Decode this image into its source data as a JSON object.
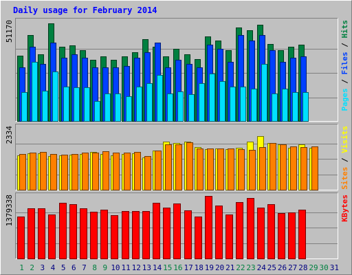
{
  "chart_data": {
    "title": "Daily usage for February 2014",
    "x": [
      "1",
      "2",
      "3",
      "4",
      "5",
      "6",
      "7",
      "8",
      "9",
      "10",
      "11",
      "12",
      "13",
      "14",
      "15",
      "16",
      "17",
      "18",
      "19",
      "20",
      "21",
      "22",
      "23",
      "24",
      "25",
      "26",
      "27",
      "28",
      "29",
      "30",
      "31"
    ],
    "x_colors": [
      "#008040",
      "#008040",
      "#000080",
      "#000080",
      "#000080",
      "#000080",
      "#000080",
      "#008040",
      "#008040",
      "#000080",
      "#000080",
      "#000080",
      "#000080",
      "#000080",
      "#008040",
      "#008040",
      "#000080",
      "#000080",
      "#000080",
      "#000080",
      "#000080",
      "#008040",
      "#008040",
      "#000080",
      "#000080",
      "#000080",
      "#000080",
      "#000080",
      "#008040",
      "#008040",
      "#000080"
    ],
    "panels": [
      {
        "type": "bar",
        "max_label": "51170",
        "ylim": [
          0,
          51170
        ],
        "series": [
          {
            "name": "Hits",
            "color": "#008040",
            "values": [
              34200,
              45000,
              35000,
              51170,
              39000,
              39500,
              37000,
              32000,
              34000,
              32000,
              34000,
              36000,
              43000,
              39000,
              34000,
              38000,
              35000,
              32500,
              44500,
              42000,
              37000,
              49000,
              47500,
              50500,
              40500,
              37000,
              39000,
              40000
            ]
          },
          {
            "name": "Files",
            "color": "#0040ff",
            "values": [
              28000,
              39000,
              30000,
              41000,
              33000,
              35000,
              33000,
              28000,
              28000,
              28000,
              29000,
              33000,
              36000,
              41000,
              28000,
              32000,
              30000,
              28000,
              40000,
              38000,
              31000,
              45000,
              42000,
              45000,
              37000,
              31000,
              33000,
              34000
            ]
          },
          {
            "name": "Pages",
            "color": "#00e0ff",
            "values": [
              15000,
              31000,
              16000,
              26000,
              18000,
              17500,
              17500,
              10500,
              14500,
              14500,
              13000,
              18000,
              20000,
              24000,
              14500,
              15500,
              14000,
              20000,
              25000,
              21000,
              18000,
              18000,
              17000,
              30000,
              14500,
              17000,
              15000,
              15000
            ]
          }
        ]
      },
      {
        "type": "bar",
        "max_label": "2334",
        "ylim": [
          0,
          2334
        ],
        "series": [
          {
            "name": "Visits",
            "color": "#ffff00",
            "values": [
              1280,
              1350,
              1350,
              1250,
              1280,
              1300,
              1340,
              1400,
              1330,
              1290,
              1340,
              1350,
              1210,
              1450,
              1790,
              1750,
              1800,
              1580,
              1500,
              1540,
              1520,
              1570,
              1800,
              2000,
              1750,
              1680,
              1550,
              1680,
              1570
            ]
          },
          {
            "name": "Sites",
            "color": "#ff8000",
            "values": [
              1320,
              1380,
              1400,
              1320,
              1300,
              1340,
              1380,
              1380,
              1440,
              1380,
              1390,
              1410,
              1260,
              1450,
              1700,
              1700,
              1760,
              1530,
              1530,
              1530,
              1540,
              1520,
              1480,
              1590,
              1750,
              1700,
              1600,
              1580,
              1600
            ]
          }
        ]
      },
      {
        "type": "bar",
        "max_label": "1379338",
        "ylim": [
          0,
          1379338
        ],
        "series": [
          {
            "name": "KBytes",
            "color": "#ff0000",
            "values": [
              930000,
              1100000,
              1105000,
              965000,
              1220000,
              1200000,
              1100000,
              1030000,
              1080000,
              960000,
              1040000,
              1050000,
              1045000,
              1220000,
              1115000,
              1210000,
              1065000,
              930000,
              1379338,
              1170000,
              975000,
              1240000,
              1330000,
              1120000,
              1200000,
              1000000,
              1010000,
              1080000
            ]
          }
        ]
      }
    ]
  }
}
